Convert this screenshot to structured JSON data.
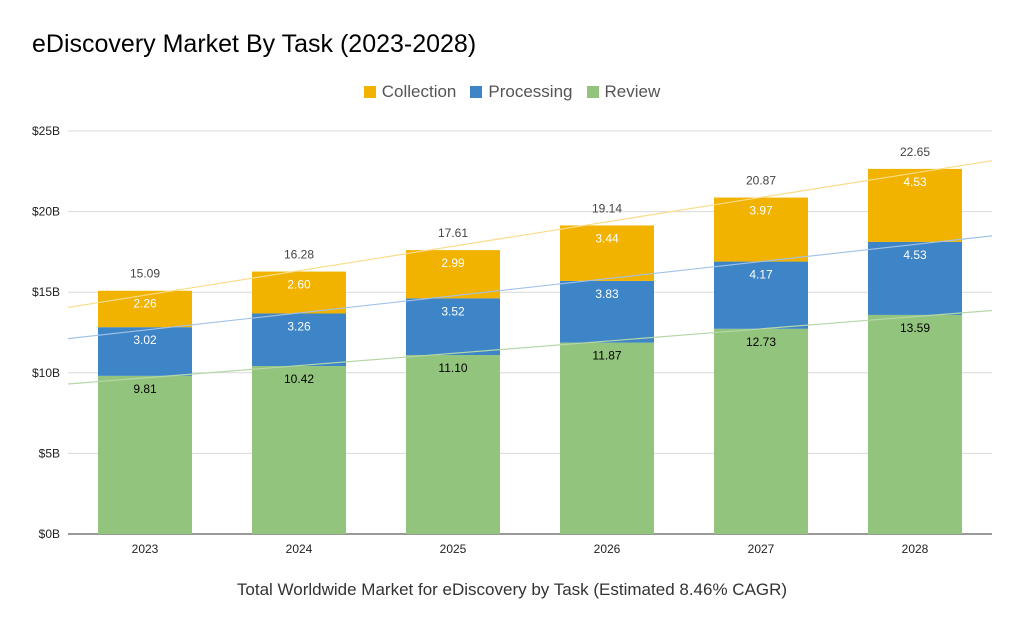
{
  "chart_data": {
    "type": "bar",
    "stacked": true,
    "title": "eDiscovery Market By Task (2023-2028)",
    "xlabel": "Total Worldwide Market for eDiscovery by Task (Estimated 8.46% CAGR)",
    "ylabel": "",
    "categories": [
      "2023",
      "2024",
      "2025",
      "2026",
      "2027",
      "2028"
    ],
    "series": [
      {
        "name": "Review",
        "color": "#93c47d",
        "label_color": "#000000",
        "values": [
          "9.81",
          "10.42",
          "11.10",
          "11.87",
          "12.73",
          "13.59"
        ]
      },
      {
        "name": "Processing",
        "color": "#3d85c6",
        "label_color": "#ffffff",
        "values": [
          "3.02",
          "3.26",
          "3.52",
          "3.83",
          "4.17",
          "4.53"
        ]
      },
      {
        "name": "Collection",
        "color": "#f1b300",
        "label_color": "#ffffff",
        "values": [
          "2.26",
          "2.60",
          "2.99",
          "3.44",
          "3.97",
          "4.53"
        ]
      }
    ],
    "totals": [
      "15.09",
      "16.28",
      "17.61",
      "19.14",
      "20.87",
      "22.65"
    ],
    "legend": {
      "position": "top",
      "order": [
        "Collection",
        "Processing",
        "Review"
      ]
    },
    "y_ticks": [
      "$0B",
      "$5B",
      "$10B",
      "$15B",
      "$20B",
      "$25B"
    ],
    "ylim": [
      0,
      25
    ],
    "grid": true,
    "trendlines": true
  }
}
